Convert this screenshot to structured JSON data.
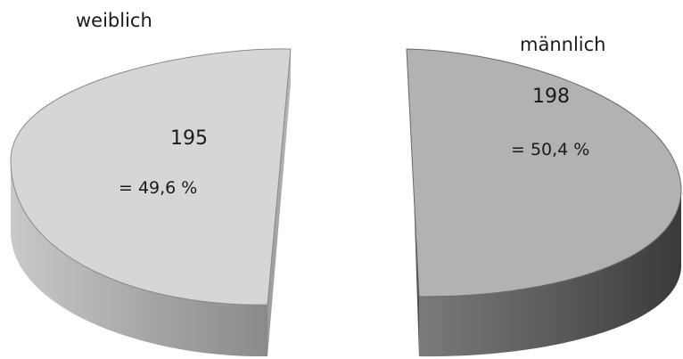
{
  "chart_data": {
    "type": "pie",
    "categories": [
      "weiblich",
      "männlich"
    ],
    "values": [
      195,
      198
    ],
    "percent_labels": [
      "= 49,6 %",
      "= 50,4 %"
    ],
    "slices": [
      {
        "category": "weiblich",
        "value": 195,
        "percent_label": "= 49,6 %",
        "color": "#d6d6d6",
        "side_color": "#8f8f8f"
      },
      {
        "category": "männlich",
        "value": 198,
        "percent_label": "= 50,4 %",
        "color": "#b2b2b2",
        "side_color": "#595959"
      }
    ],
    "style": "3d-exploded",
    "legend": "none"
  }
}
